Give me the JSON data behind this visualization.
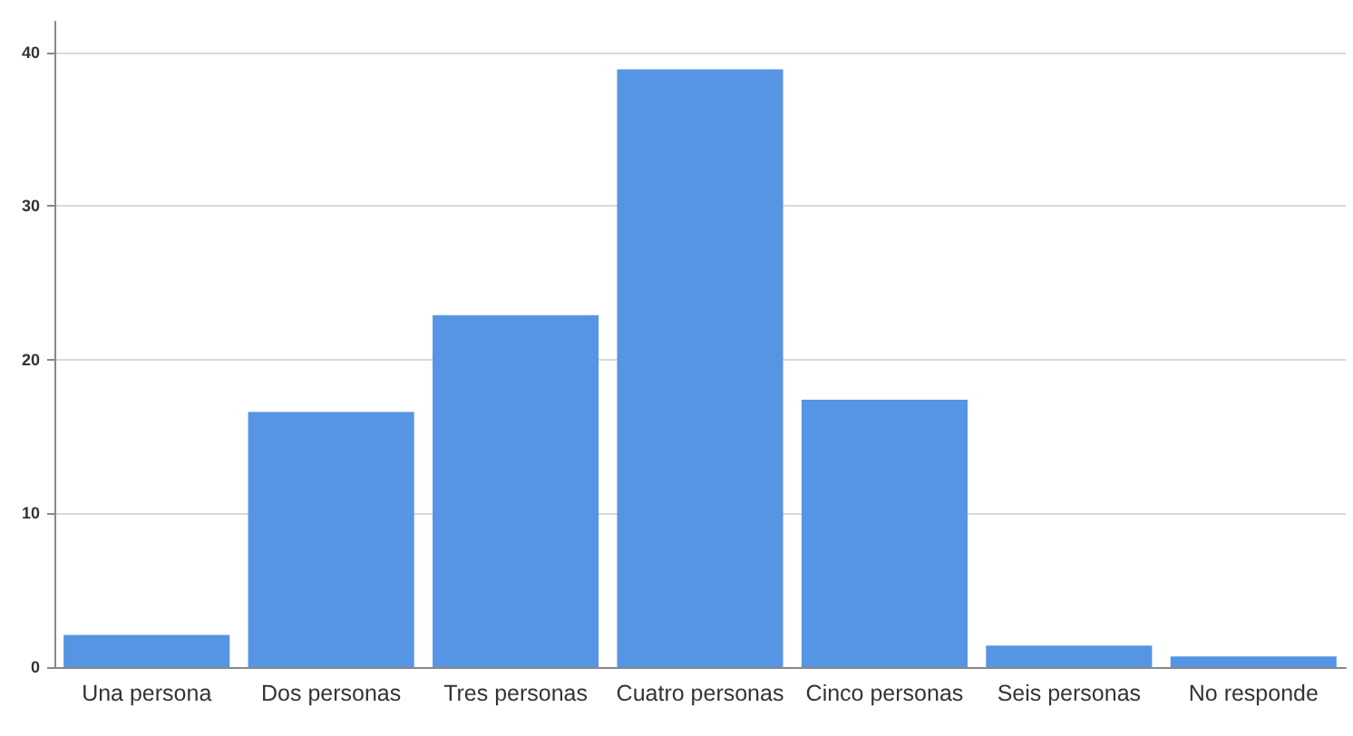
{
  "chart_data": {
    "type": "bar",
    "categories": [
      "Una persona",
      "Dos personas",
      "Tres personas",
      "Cuatro personas",
      "Cinco personas",
      "Seis personas",
      "No responde"
    ],
    "values": [
      2.1,
      16.6,
      22.9,
      38.9,
      17.4,
      1.4,
      0.7
    ],
    "color": "#5595e3",
    "ylim": [
      0,
      42
    ],
    "yticks": [
      0,
      10,
      20,
      30,
      40
    ],
    "grid": "y"
  }
}
